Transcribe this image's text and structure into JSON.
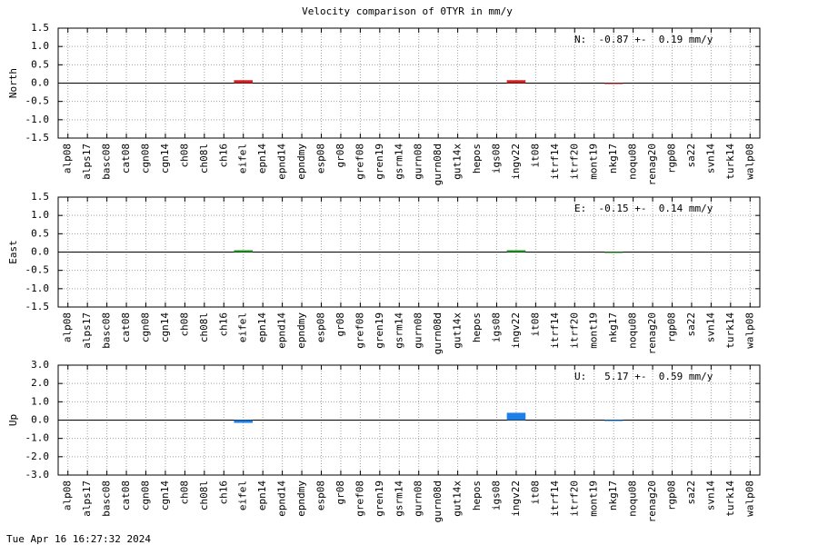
{
  "title": "Velocity comparison of 0TYR in mm/y",
  "footer": "Tue Apr 16 16:27:32 2024",
  "chart_data": [
    {
      "type": "bar",
      "ylabel": "North",
      "annotation": "N:  -0.87 +-  0.19 mm/y",
      "color": "#d62020",
      "grid": true,
      "categories": [
        "alp08",
        "alps17",
        "basc08",
        "cat08",
        "cgn08",
        "cgn14",
        "ch08",
        "ch08l",
        "ch16",
        "eifel",
        "epn14",
        "epnd14",
        "epndmy",
        "esp08",
        "gr08",
        "gref08",
        "gren19",
        "gsrm14",
        "gurn08",
        "gurn08d",
        "gut14x",
        "hepos",
        "igs08",
        "ingv22",
        "it08",
        "itrf14",
        "itrf20",
        "mont19",
        "nkg17",
        "noqu08",
        "renag20",
        "rgp08",
        "sa22",
        "svn14",
        "turk14",
        "walp08"
      ],
      "values": [
        null,
        null,
        null,
        null,
        null,
        null,
        null,
        null,
        null,
        0.08,
        null,
        null,
        null,
        null,
        null,
        null,
        null,
        null,
        null,
        null,
        null,
        null,
        null,
        0.08,
        null,
        null,
        null,
        null,
        -0.02,
        null,
        null,
        null,
        null,
        null,
        null,
        null
      ],
      "ylim": [
        -1.5,
        1.5
      ],
      "yticks": [
        1.5,
        {
          "value": 1,
          "label": "1.0"
        },
        0.5,
        {
          "value": 0,
          "label": "0.0"
        },
        -0.5,
        {
          "value": -1,
          "label": "-1.0"
        },
        -1.5
      ]
    },
    {
      "type": "bar",
      "ylabel": "East",
      "annotation": "E:  -0.15 +-  0.14 mm/y",
      "color": "#20a020",
      "grid": true,
      "categories": [
        "alp08",
        "alps17",
        "basc08",
        "cat08",
        "cgn08",
        "cgn14",
        "ch08",
        "ch08l",
        "ch16",
        "eifel",
        "epn14",
        "epnd14",
        "epndmy",
        "esp08",
        "gr08",
        "gref08",
        "gren19",
        "gsrm14",
        "gurn08",
        "gurn08d",
        "gut14x",
        "hepos",
        "igs08",
        "ingv22",
        "it08",
        "itrf14",
        "itrf20",
        "mont19",
        "nkg17",
        "noqu08",
        "renag20",
        "rgp08",
        "sa22",
        "svn14",
        "turk14",
        "walp08"
      ],
      "values": [
        null,
        null,
        null,
        null,
        null,
        null,
        null,
        null,
        null,
        0.05,
        null,
        null,
        null,
        null,
        null,
        null,
        null,
        null,
        null,
        null,
        null,
        null,
        null,
        0.05,
        null,
        null,
        null,
        null,
        -0.02,
        null,
        null,
        null,
        null,
        null,
        null,
        null
      ],
      "ylim": [
        -1.5,
        1.5
      ],
      "yticks": [
        1.5,
        {
          "value": 1,
          "label": "1.0"
        },
        0.5,
        {
          "value": 0,
          "label": "0.0"
        },
        -0.5,
        {
          "value": -1,
          "label": "-1.0"
        },
        -1.5
      ]
    },
    {
      "type": "bar",
      "ylabel": "Up",
      "annotation": "U:   5.17 +-  0.59 mm/y",
      "color": "#1e7fe6",
      "grid": true,
      "categories": [
        "alp08",
        "alps17",
        "basc08",
        "cat08",
        "cgn08",
        "cgn14",
        "ch08",
        "ch08l",
        "ch16",
        "eifel",
        "epn14",
        "epnd14",
        "epndmy",
        "esp08",
        "gr08",
        "gref08",
        "gren19",
        "gsrm14",
        "gurn08",
        "gurn08d",
        "gut14x",
        "hepos",
        "igs08",
        "ingv22",
        "it08",
        "itrf14",
        "itrf20",
        "mont19",
        "nkg17",
        "noqu08",
        "renag20",
        "rgp08",
        "sa22",
        "svn14",
        "turk14",
        "walp08"
      ],
      "values": [
        null,
        null,
        null,
        null,
        null,
        null,
        null,
        null,
        null,
        -0.15,
        null,
        null,
        null,
        null,
        null,
        null,
        null,
        null,
        null,
        null,
        null,
        null,
        null,
        0.4,
        null,
        null,
        null,
        null,
        -0.05,
        null,
        null,
        null,
        null,
        null,
        null,
        null
      ],
      "ylim": [
        -3,
        3
      ],
      "yticks": [
        {
          "value": 3,
          "label": "3.0"
        },
        {
          "value": 2,
          "label": "2.0"
        },
        {
          "value": 1,
          "label": "1.0"
        },
        {
          "value": 0,
          "label": "0.0"
        },
        {
          "value": -1,
          "label": "-1.0"
        },
        {
          "value": -2,
          "label": "-2.0"
        },
        {
          "value": -3,
          "label": "-3.0"
        }
      ]
    }
  ]
}
